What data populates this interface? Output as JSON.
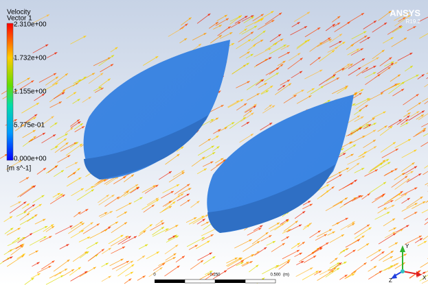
{
  "legend": {
    "title": "Velocity",
    "subtitle": "Vector 1",
    "labels": [
      "2.310e+00",
      "1.732e+00",
      "1.155e+00",
      "5.775e-01",
      "0.000e+00"
    ],
    "unit": "[m s^-1]"
  },
  "brand": {
    "name": "ANSYS",
    "version": "R19.2"
  },
  "scale_bar": {
    "labels": [
      "0",
      "0.250",
      "0.500"
    ],
    "unit": "(m)"
  },
  "axes": {
    "y": "Y",
    "z": "Z",
    "x": "X"
  }
}
